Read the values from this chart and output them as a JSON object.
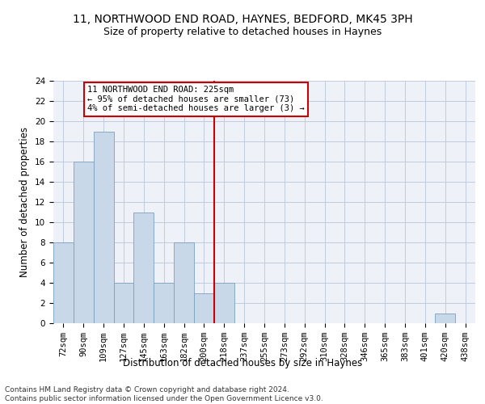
{
  "title1": "11, NORTHWOOD END ROAD, HAYNES, BEDFORD, MK45 3PH",
  "title2": "Size of property relative to detached houses in Haynes",
  "xlabel": "Distribution of detached houses by size in Haynes",
  "ylabel": "Number of detached properties",
  "categories": [
    "72sqm",
    "90sqm",
    "109sqm",
    "127sqm",
    "145sqm",
    "163sqm",
    "182sqm",
    "200sqm",
    "218sqm",
    "237sqm",
    "255sqm",
    "273sqm",
    "292sqm",
    "310sqm",
    "328sqm",
    "346sqm",
    "365sqm",
    "383sqm",
    "401sqm",
    "420sqm",
    "438sqm"
  ],
  "values": [
    8,
    16,
    19,
    4,
    11,
    4,
    8,
    3,
    4,
    0,
    0,
    0,
    0,
    0,
    0,
    0,
    0,
    0,
    0,
    1,
    0
  ],
  "bar_color": "#c8d8e8",
  "bar_edge_color": "#7aa0be",
  "property_line_x": 8.0,
  "property_line_color": "#cc0000",
  "annotation_text": "11 NORTHWOOD END ROAD: 225sqm\n← 95% of detached houses are smaller (73)\n4% of semi-detached houses are larger (3) →",
  "annotation_box_color": "#ffffff",
  "annotation_box_edge_color": "#cc0000",
  "ylim": [
    0,
    24
  ],
  "yticks": [
    0,
    2,
    4,
    6,
    8,
    10,
    12,
    14,
    16,
    18,
    20,
    22,
    24
  ],
  "grid_color": "#c0ccdd",
  "background_color": "#eef2f8",
  "footer": "Contains HM Land Registry data © Crown copyright and database right 2024.\nContains public sector information licensed under the Open Government Licence v3.0.",
  "title1_fontsize": 10,
  "title2_fontsize": 9,
  "xlabel_fontsize": 8.5,
  "ylabel_fontsize": 8.5,
  "tick_fontsize": 7.5,
  "annotation_fontsize": 7.5,
  "footer_fontsize": 6.5
}
